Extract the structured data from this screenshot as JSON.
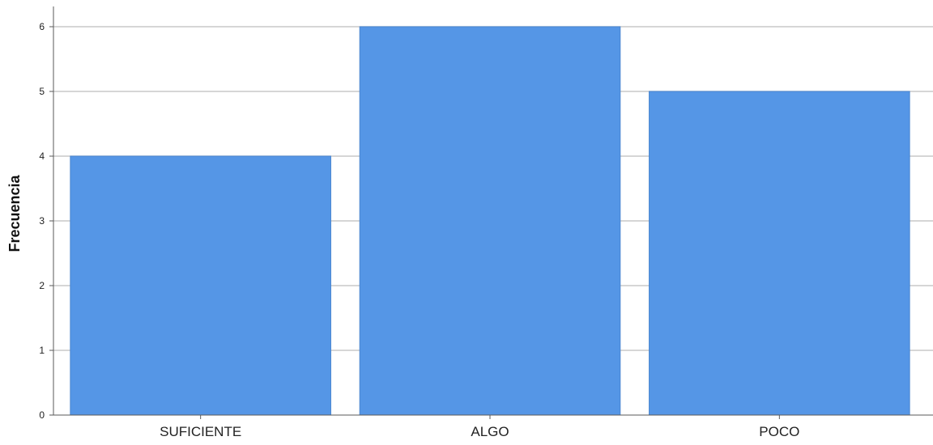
{
  "chart_data": {
    "type": "bar",
    "title": "",
    "xlabel": "",
    "ylabel": "Frecuencia",
    "categories": [
      "SUFICIENTE",
      "ALGO",
      "POCO"
    ],
    "values": [
      4,
      6,
      5
    ],
    "yticks": [
      "0",
      "1",
      "2",
      "3",
      "4",
      "5",
      "6"
    ],
    "ylim": [
      0,
      6
    ],
    "grid": true,
    "legend": "none",
    "bar_color": "#5596e6",
    "bar_border_color": "#4a86d0"
  }
}
